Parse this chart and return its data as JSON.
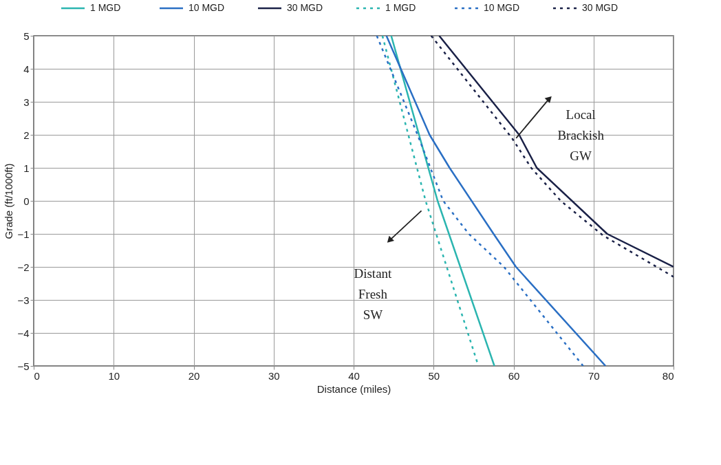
{
  "chart_data": {
    "type": "line",
    "xlabel": "Distance (miles)",
    "ylabel": "Grade (ft/1000ft)",
    "xlim": [
      0,
      80
    ],
    "ylim": [
      -5,
      5
    ],
    "xticks": [
      0,
      10,
      20,
      30,
      40,
      50,
      60,
      70,
      80
    ],
    "yticks": [
      -5,
      -4,
      -3,
      -2,
      -1,
      0,
      1,
      2,
      3,
      4,
      5
    ],
    "grid": true,
    "legend": "top",
    "marker": "none",
    "series": [
      {
        "name": "1 MGD",
        "color": "#2bb5b0",
        "line_style": "solid",
        "x": [
          44.7,
          50.5,
          57.6
        ],
        "values": [
          5,
          0,
          -5
        ]
      },
      {
        "name": "10 MGD",
        "color": "#2a6fc4",
        "line_style": "solid",
        "x": [
          44.1,
          45.9,
          49.5,
          52.0,
          57.5,
          60.3,
          71.5
        ],
        "values": [
          5,
          4,
          2,
          1,
          -1,
          -2,
          -5
        ]
      },
      {
        "name": "30 MGD",
        "color": "#1a2147",
        "line_style": "solid",
        "x": [
          50.7,
          60.7,
          62.9,
          71.7,
          80.0
        ],
        "values": [
          5,
          2,
          1,
          -1,
          -2
        ]
      },
      {
        "name": "1 MGD",
        "color": "#2bb5b0",
        "line_style": "dotted",
        "x": [
          43.6,
          49.0,
          55.6
        ],
        "values": [
          5,
          0,
          -5
        ]
      },
      {
        "name": "10 MGD",
        "color": "#2a6fc4",
        "line_style": "dotted",
        "x": [
          42.9,
          48.0,
          51.2,
          54.4,
          58.8,
          68.7
        ],
        "values": [
          5,
          2,
          0,
          -1,
          -2,
          -5
        ]
      },
      {
        "name": "30 MGD",
        "color": "#1a2147",
        "line_style": "dotted",
        "x": [
          49.7,
          59.8,
          62.2,
          65.9,
          71.2,
          80.0
        ],
        "values": [
          5,
          1.9,
          1,
          0,
          -1.05,
          -2.3
        ]
      }
    ],
    "annotations": [
      "Local\nBrackish\nGW",
      "Distant\nFresh\nSW"
    ]
  }
}
